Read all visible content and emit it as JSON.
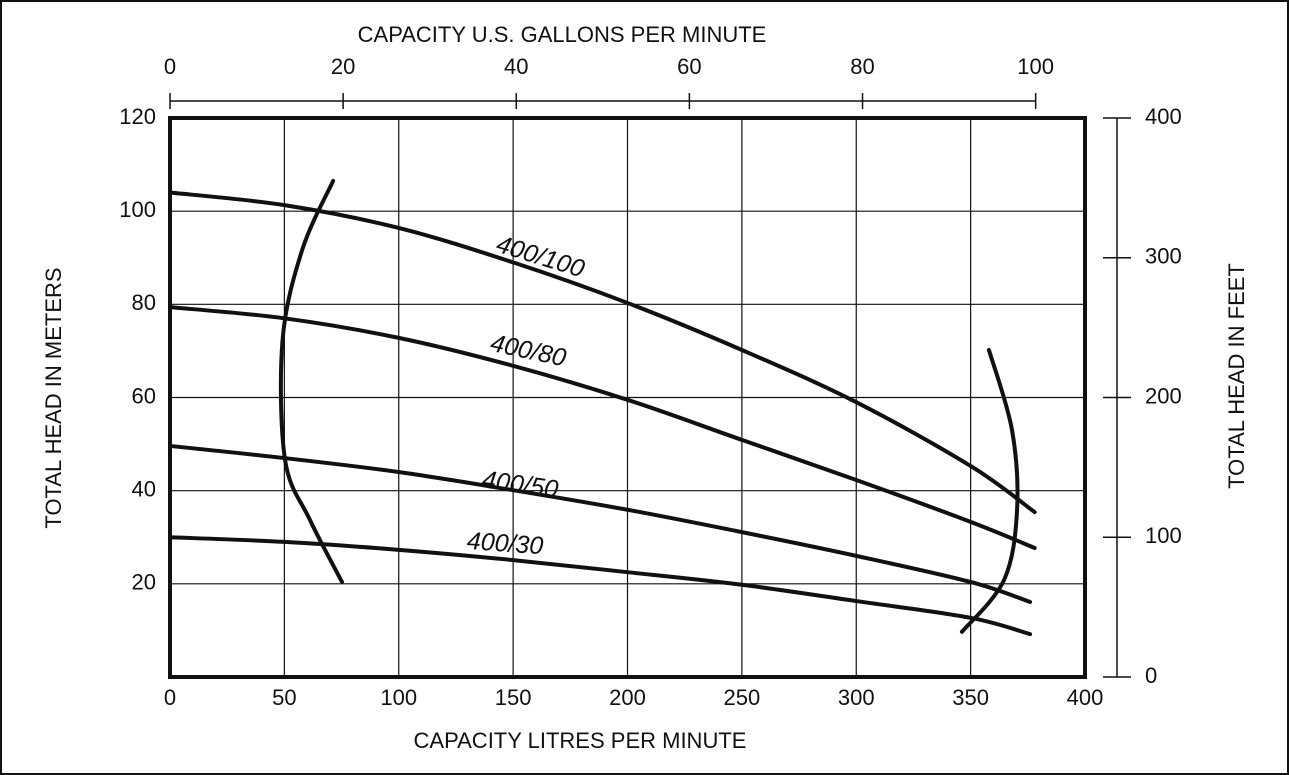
{
  "chart_data": {
    "type": "line",
    "xlabel": "CAPACITY LITRES PER MINUTE",
    "x2label": "CAPACITY U.S. GALLONS PER MINUTE",
    "ylabel": "TOTAL HEAD IN METERS",
    "y2label": "TOTAL HEAD IN FEET",
    "xlim": [
      0,
      400
    ],
    "xticks": [
      0,
      50,
      100,
      150,
      200,
      250,
      300,
      350,
      400
    ],
    "x2lim": [
      0,
      105.7
    ],
    "x2ticks": [
      0,
      20,
      40,
      60,
      80,
      100
    ],
    "ylim": [
      0,
      120
    ],
    "yticks": [
      20,
      40,
      60,
      80,
      100,
      120
    ],
    "y2lim": [
      0,
      400
    ],
    "y2ticks": [
      0,
      100,
      200,
      300,
      400
    ],
    "grid": true,
    "series": [
      {
        "name": "400/100",
        "color": "#111111",
        "x": [
          0,
          50,
          100,
          150,
          200,
          250,
          300,
          350,
          378
        ],
        "values": [
          104,
          101.3,
          96.4,
          89,
          80.3,
          70.2,
          59,
          45.3,
          35.4
        ]
      },
      {
        "name": "400/80",
        "color": "#111111",
        "x": [
          0,
          50,
          100,
          150,
          200,
          250,
          300,
          350,
          378
        ],
        "values": [
          79.4,
          77,
          72.8,
          66.8,
          59.5,
          50.9,
          42.3,
          33.3,
          27.7
        ]
      },
      {
        "name": "400/50",
        "color": "#111111",
        "x": [
          0,
          50,
          100,
          150,
          200,
          250,
          300,
          350,
          376
        ],
        "values": [
          49.6,
          47,
          44,
          40.1,
          35.9,
          31.1,
          26,
          20.4,
          16.1
        ]
      },
      {
        "name": "400/30",
        "color": "#111111",
        "x": [
          0,
          50,
          100,
          150,
          200,
          250,
          300,
          350,
          376
        ],
        "values": [
          30,
          29,
          27.3,
          25.1,
          22.5,
          19.8,
          16.3,
          12.7,
          9.2
        ]
      },
      {
        "color": "#111111",
        "x": [
          71.3,
          57.8,
          49.2,
          50.3,
          61.2,
          75.2
        ],
        "values": [
          106.5,
          91.7,
          72.3,
          46.6,
          33.7,
          20.4
        ]
      },
      {
        "color": "#111111",
        "x": [
          358,
          368.1,
          370.3,
          364.6,
          346.2
        ],
        "values": [
          70.2,
          53,
          35.9,
          20.8,
          9.7
        ]
      }
    ]
  }
}
